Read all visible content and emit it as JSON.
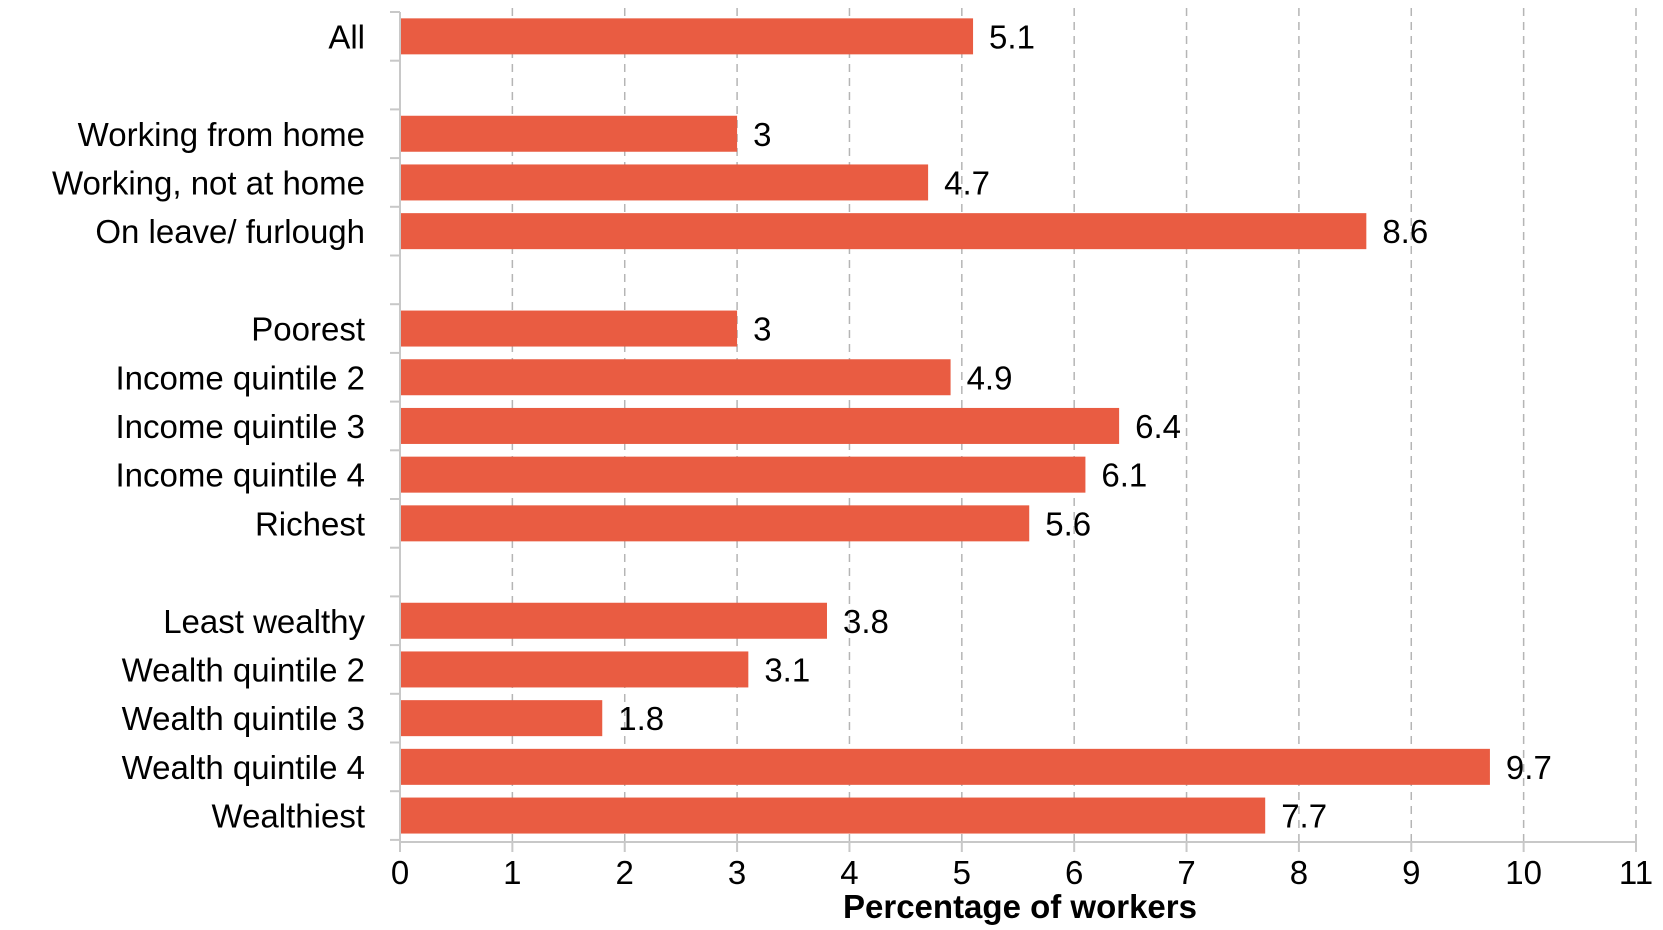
{
  "chart_data": {
    "type": "bar",
    "orientation": "horizontal",
    "title": "",
    "xlabel": "Percentage of workers",
    "ylabel": "",
    "xlim": [
      0,
      11
    ],
    "xticks": [
      0,
      1,
      2,
      3,
      4,
      5,
      6,
      7,
      8,
      9,
      10,
      11
    ],
    "grid": "vertical dashed",
    "legend": "none",
    "bar_color": "#E95C42",
    "categories": [
      "All",
      "",
      "Working from home",
      "Working, not at home",
      "On leave/ furlough",
      "",
      "Poorest",
      "Income quintile 2",
      "Income quintile 3",
      "Income quintile 4",
      "Richest",
      "",
      "Least wealthy",
      "Wealth quintile 2",
      "Wealth quintile 3 ",
      "Wealth quintile 4",
      "Wealthiest"
    ],
    "values": [
      5.1,
      null,
      3,
      4.7,
      8.6,
      null,
      3,
      4.9,
      6.4,
      6.1,
      5.6,
      null,
      3.8,
      3.1,
      1.8,
      9.7,
      7.7
    ],
    "value_labels": [
      "5.1",
      "",
      "3",
      "4.7",
      "8.6",
      "",
      "3",
      "4.9",
      "6.4",
      "6.1",
      "5.6",
      "",
      "3.8",
      "3.1",
      "1.8",
      "9.7",
      "7.7"
    ]
  }
}
